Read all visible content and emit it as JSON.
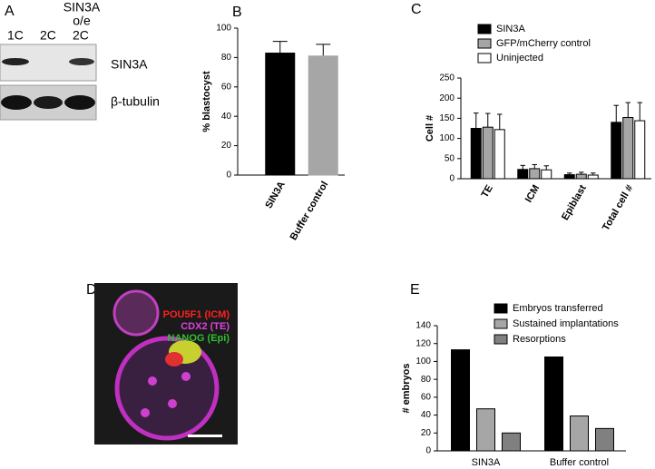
{
  "panel_labels": [
    "A",
    "B",
    "C",
    "D",
    "E"
  ],
  "blot": {
    "lanes": [
      "1C",
      "2C",
      "2C"
    ],
    "lane_header": [
      "SIN3A",
      "o/e"
    ],
    "rows": [
      "SIN3A",
      "β-tubulin"
    ]
  },
  "image": {
    "labels": [
      "POU5F1 (ICM)",
      "CDX2 (TE)",
      "NANOG (Epi)"
    ]
  },
  "chart_data": [
    {
      "type": "bar",
      "y_label": "% blastocyst",
      "categories": [
        "SIN3A",
        "Buffer control"
      ],
      "series": [
        {
          "colors": [
            "#000000",
            "#a6a6a6"
          ],
          "values": [
            83,
            81
          ],
          "errors": [
            8,
            8
          ]
        }
      ],
      "ylim": [
        0,
        100
      ],
      "yticks": [
        0,
        20,
        40,
        60,
        80,
        100
      ],
      "rotate_x_labels": true
    },
    {
      "type": "bar",
      "y_label": "Cell #",
      "categories": [
        "TE",
        "ICM",
        "Epiblast",
        "Total cell #"
      ],
      "series": [
        {
          "name": "SIN3A",
          "color": "#000000",
          "values": [
            125,
            23,
            10,
            140
          ],
          "errors": [
            38,
            10,
            4,
            42
          ]
        },
        {
          "name": "GFP/mCherry control",
          "color": "#a6a6a6",
          "values": [
            128,
            25,
            11,
            152
          ],
          "errors": [
            34,
            10,
            5,
            37
          ]
        },
        {
          "name": "Uninjected",
          "color": "#ffffff",
          "values": [
            122,
            22,
            9,
            144
          ],
          "errors": [
            38,
            10,
            5,
            45
          ]
        }
      ],
      "ylim": [
        0,
        250
      ],
      "yticks": [
        0,
        50,
        100,
        150,
        200,
        250
      ],
      "rotate_x_labels": true,
      "legend": "top-left"
    },
    {
      "type": "bar",
      "y_label": "# embryos",
      "categories": [
        "SIN3A",
        "Buffer control"
      ],
      "series": [
        {
          "name": "Embryos transferred",
          "color": "#000000",
          "values": [
            113,
            105
          ]
        },
        {
          "name": "Sustained implantations",
          "color": "#a6a6a6",
          "values": [
            47,
            39
          ]
        },
        {
          "name": "Resorptions",
          "color": "#808080",
          "values": [
            20,
            25
          ]
        }
      ],
      "ylim": [
        0,
        140
      ],
      "yticks": [
        0,
        20,
        40,
        60,
        80,
        100,
        120,
        140
      ],
      "rotate_x_labels": false,
      "legend": "top-left"
    }
  ]
}
